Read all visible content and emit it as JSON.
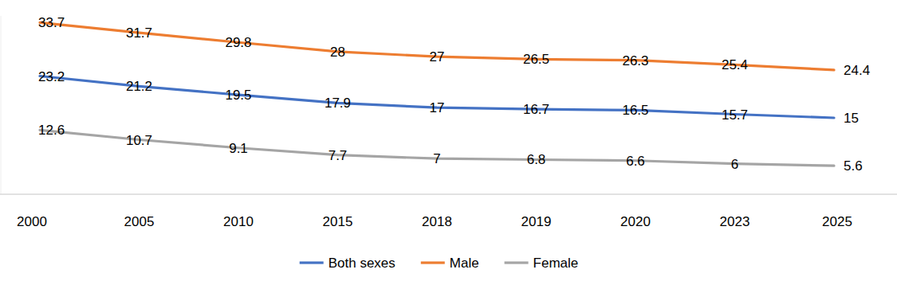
{
  "chart_data": {
    "type": "line",
    "categories": [
      "2000",
      "2005",
      "2010",
      "2015",
      "2018",
      "2019",
      "2020",
      "2023",
      "2025"
    ],
    "series": [
      {
        "name": "Both sexes",
        "color": "#4472c4",
        "values": [
          23.2,
          21.2,
          19.5,
          17.9,
          17,
          16.7,
          16.5,
          15.7,
          15
        ]
      },
      {
        "name": "Male",
        "color": "#ed7d31",
        "values": [
          33.7,
          31.7,
          29.8,
          28,
          27,
          26.5,
          26.3,
          25.4,
          24.4
        ]
      },
      {
        "name": "Female",
        "color": "#a5a5a5",
        "values": [
          12.6,
          10.7,
          9.1,
          7.7,
          7,
          6.8,
          6.6,
          6,
          5.6
        ]
      }
    ],
    "ylim": [
      0,
      35
    ],
    "data_labels": true,
    "tick_labels": "x",
    "legend": "bottom",
    "grid": false
  }
}
